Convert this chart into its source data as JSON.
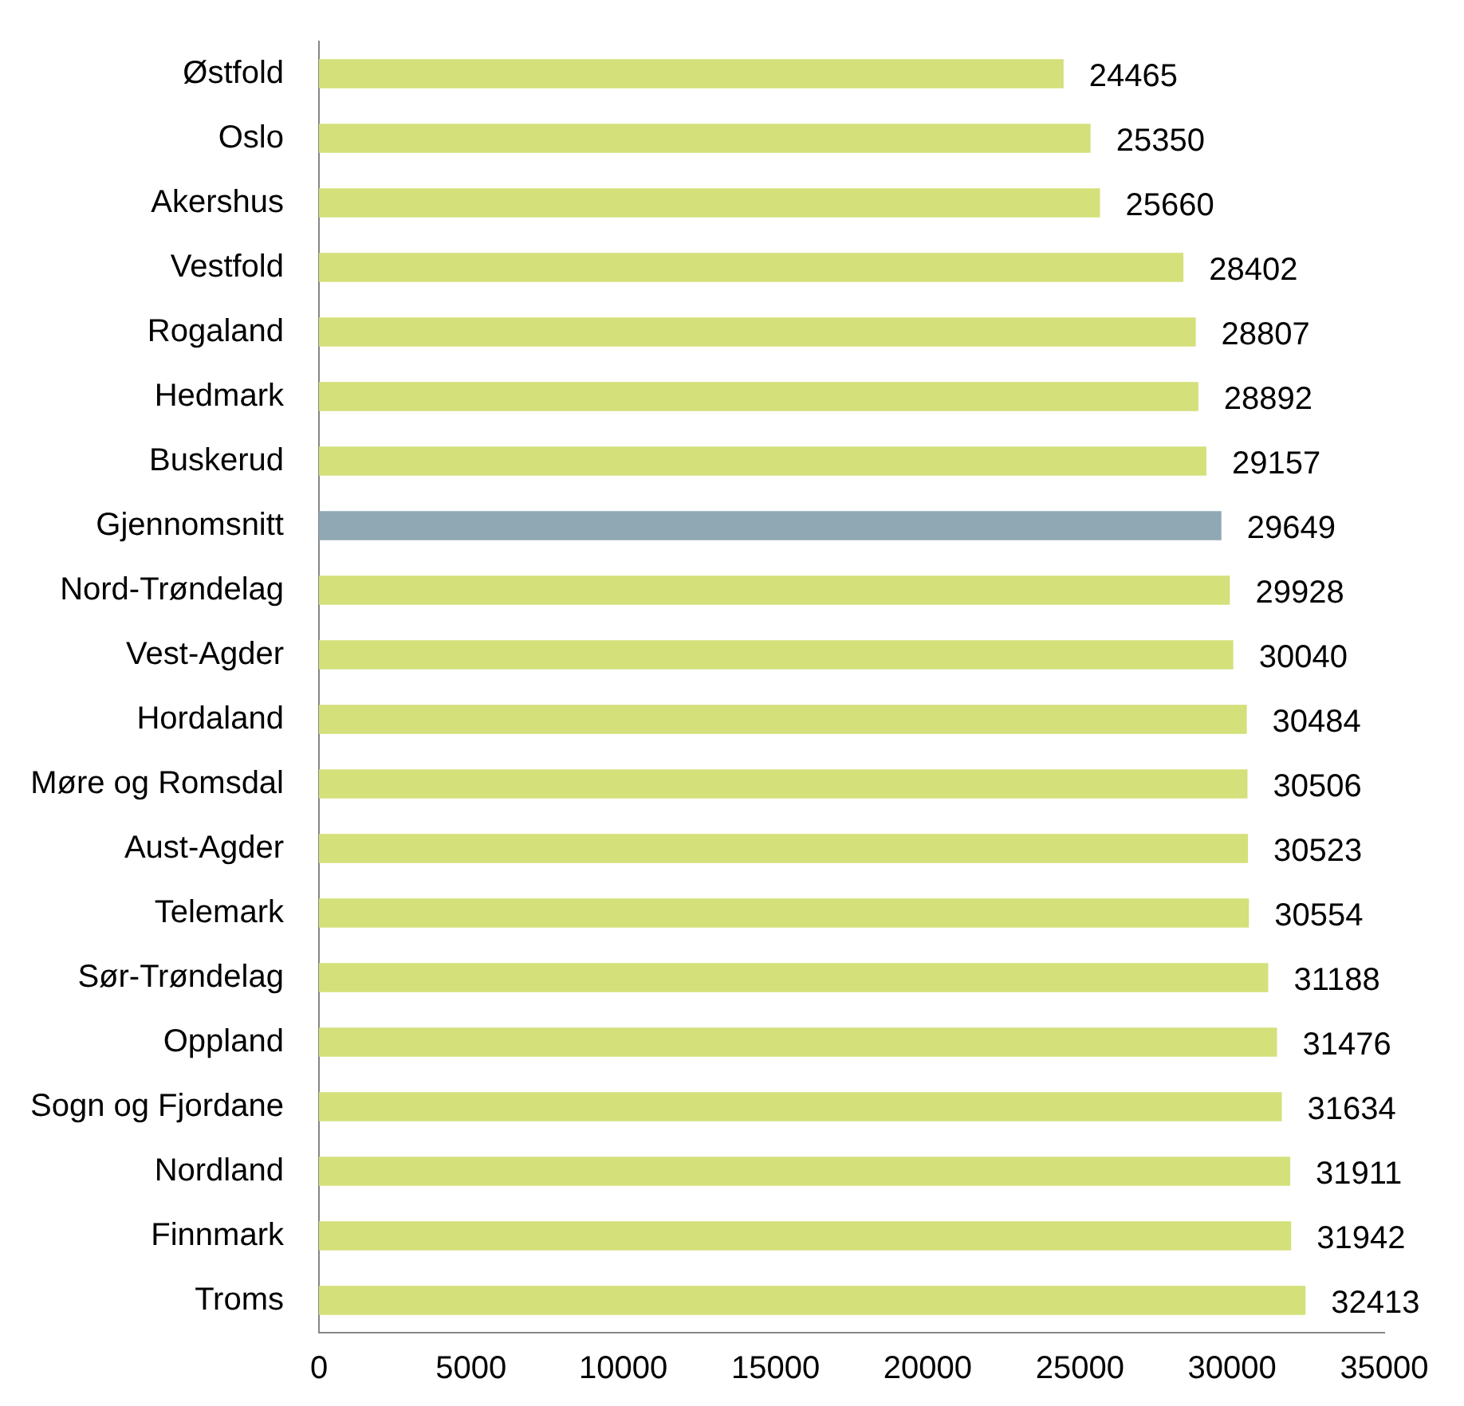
{
  "chart_data": {
    "type": "bar",
    "orientation": "horizontal",
    "categories": [
      "Østfold",
      "Oslo",
      "Akershus",
      "Vestfold",
      "Rogaland",
      "Hedmark",
      "Buskerud",
      "Gjennomsnitt",
      "Nord-Trøndelag",
      "Vest-Agder",
      "Hordaland",
      "Møre og Romsdal",
      "Aust-Agder",
      "Telemark",
      "Sør-Trøndelag",
      "Oppland",
      "Sogn og Fjordane",
      "Nordland",
      "Finnmark",
      "Troms"
    ],
    "values": [
      24465,
      25350,
      25660,
      28402,
      28807,
      28892,
      29157,
      29649,
      29928,
      30040,
      30484,
      30506,
      30523,
      30554,
      31188,
      31476,
      31634,
      31911,
      31942,
      32413
    ],
    "colors": [
      "#d4e07a",
      "#d4e07a",
      "#d4e07a",
      "#d4e07a",
      "#d4e07a",
      "#d4e07a",
      "#d4e07a",
      "#8fa8b4",
      "#d4e07a",
      "#d4e07a",
      "#d4e07a",
      "#d4e07a",
      "#d4e07a",
      "#d4e07a",
      "#d4e07a",
      "#d4e07a",
      "#d4e07a",
      "#d4e07a",
      "#d4e07a",
      "#d4e07a"
    ],
    "xlim": [
      0,
      35000
    ],
    "xticks": [
      0,
      5000,
      10000,
      15000,
      20000,
      25000,
      30000,
      35000
    ],
    "grid": false,
    "legend": false,
    "data_labels": true
  }
}
